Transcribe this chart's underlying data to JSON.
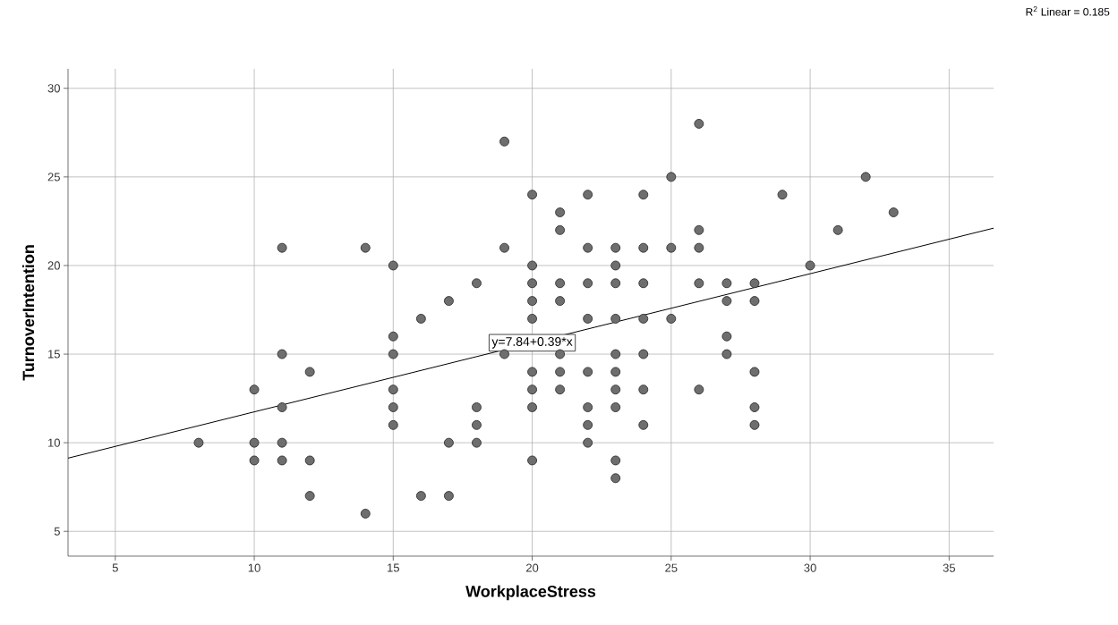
{
  "chart_data": {
    "type": "scatter",
    "xlabel": "WorkplaceStress",
    "ylabel": "TurnoverIntention",
    "xlim": [
      3.3,
      36.6
    ],
    "ylim": [
      3.6,
      31.1
    ],
    "xticks": [
      5,
      10,
      15,
      20,
      25,
      30,
      35
    ],
    "yticks": [
      5,
      10,
      15,
      20,
      25,
      30
    ],
    "grid": true,
    "series": [
      {
        "marker": "circle",
        "color": "#6e6e6e",
        "x": [
          8,
          10,
          10,
          10,
          11,
          11,
          11,
          11,
          11,
          12,
          12,
          12,
          14,
          14,
          15,
          15,
          15,
          15,
          15,
          15,
          16,
          16,
          17,
          17,
          17,
          18,
          18,
          18,
          18,
          19,
          19,
          19,
          20,
          20,
          20,
          20,
          20,
          20,
          20,
          20,
          20,
          21,
          21,
          21,
          21,
          21,
          21,
          21,
          22,
          22,
          22,
          22,
          22,
          22,
          22,
          22,
          23,
          23,
          23,
          23,
          23,
          23,
          23,
          23,
          23,
          23,
          24,
          24,
          24,
          24,
          24,
          24,
          24,
          25,
          25,
          25,
          26,
          26,
          26,
          26,
          26,
          27,
          27,
          27,
          27,
          28,
          28,
          28,
          28,
          28,
          29,
          30,
          31,
          32,
          33
        ],
        "values": [
          10,
          13,
          10,
          9,
          21,
          15,
          12,
          10,
          9,
          14,
          9,
          7,
          21,
          6,
          20,
          16,
          15,
          13,
          12,
          11,
          17,
          7,
          18,
          10,
          7,
          19,
          12,
          11,
          10,
          27,
          21,
          15,
          24,
          20,
          19,
          18,
          17,
          14,
          13,
          12,
          9,
          23,
          22,
          19,
          18,
          15,
          14,
          13,
          24,
          21,
          19,
          17,
          14,
          12,
          11,
          10,
          21,
          20,
          19,
          17,
          15,
          14,
          13,
          12,
          9,
          8,
          24,
          21,
          19,
          17,
          15,
          13,
          11,
          25,
          21,
          17,
          28,
          22,
          21,
          19,
          13,
          19,
          18,
          16,
          15,
          19,
          18,
          14,
          12,
          11,
          24,
          20,
          22,
          25,
          23
        ]
      },
      {
        "type": "line",
        "marker": "none",
        "color": "#000000",
        "x": [
          3.3,
          36.6
        ],
        "values": [
          9.13,
          22.11
        ]
      }
    ],
    "annotations": [
      {
        "text": "y=7.84+0.39*x",
        "x": 20,
        "y": 15.64
      },
      "R$^{2}$ Linear = 0.185"
    ]
  }
}
